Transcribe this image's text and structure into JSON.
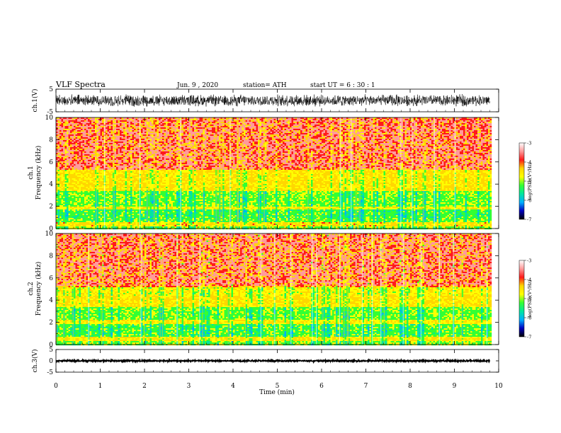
{
  "header": {
    "title": "VLF  Spectra",
    "date": "Jun. 9  , 2020",
    "station": "station= ATH",
    "start_ut": "start  UT  =    6  : 30 : 1"
  },
  "colorbar": {
    "label": "log(PSD)(V²/Hz)",
    "ticks": [
      "-3",
      "-4",
      "-5",
      "-6",
      "-7"
    ],
    "colors": [
      "#ffffff",
      "#ff9a9a",
      "#ff1a1a",
      "#ffd700",
      "#ffff00",
      "#33ff33",
      "#00e6a0",
      "#00b0ff",
      "#0000c0",
      "#000000"
    ]
  },
  "chart_data": [
    {
      "type": "line",
      "panel": "ch1-waveform",
      "ylabel": "ch.1(V)",
      "ylim": [
        -5,
        5
      ],
      "yticks": [
        "5",
        "-5"
      ],
      "xlim": [
        0,
        10
      ],
      "amplitude": 2.6,
      "color": "#000000"
    },
    {
      "type": "heatmap",
      "panel": "ch1-spectrogram",
      "ylabel": "ch.1\nFrequency (kHz)",
      "ylim": [
        0,
        10
      ],
      "yticks": [
        "0",
        "2",
        "4",
        "6",
        "8",
        "10"
      ],
      "xlim": [
        0,
        10
      ],
      "bands": [
        {
          "from": 0,
          "to": 0.3,
          "level": 4.5
        },
        {
          "from": 0.3,
          "to": 0.7,
          "level": 3.2
        },
        {
          "from": 0.7,
          "to": 1.0,
          "level": 4.8
        },
        {
          "from": 1.0,
          "to": 1.8,
          "level": 5.0
        },
        {
          "from": 1.8,
          "to": 2.1,
          "level": 3.6
        },
        {
          "from": 2.1,
          "to": 3.5,
          "level": 4.7
        },
        {
          "from": 3.5,
          "to": 5.4,
          "level": 3.3
        },
        {
          "from": 5.4,
          "to": 10.0,
          "level": 2.5
        }
      ]
    },
    {
      "type": "heatmap",
      "panel": "ch2-spectrogram",
      "ylabel": "ch.2\nFrequency (kHz)",
      "ylim": [
        0,
        10
      ],
      "yticks": [
        "0",
        "2",
        "4",
        "6",
        "8",
        "10"
      ],
      "xlim": [
        0,
        10
      ],
      "bands": [
        {
          "from": 0,
          "to": 0.4,
          "level": 4.6
        },
        {
          "from": 0.4,
          "to": 0.8,
          "level": 3.3
        },
        {
          "from": 0.8,
          "to": 1.9,
          "level": 4.9
        },
        {
          "from": 1.9,
          "to": 2.3,
          "level": 3.6
        },
        {
          "from": 2.3,
          "to": 3.5,
          "level": 4.7
        },
        {
          "from": 3.5,
          "to": 4.4,
          "level": 3.3
        },
        {
          "from": 4.4,
          "to": 5.2,
          "level": 3.8
        },
        {
          "from": 5.2,
          "to": 10.0,
          "level": 2.6
        }
      ]
    },
    {
      "type": "line",
      "panel": "ch3-waveform",
      "ylabel": "ch.3(V)",
      "ylim": [
        -5,
        5
      ],
      "yticks": [
        "5",
        "0",
        "-5"
      ],
      "xlim": [
        0,
        10
      ],
      "amplitude": 0.35,
      "color": "#000000"
    }
  ],
  "xaxis": {
    "label": "Time  (min)",
    "ticks": [
      "0",
      "1",
      "2",
      "3",
      "4",
      "5",
      "6",
      "7",
      "8",
      "9",
      "10"
    ],
    "range": [
      0,
      10
    ],
    "data_end": 9.8
  }
}
